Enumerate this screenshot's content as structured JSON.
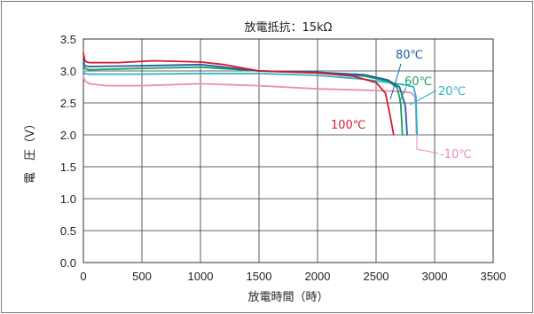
{
  "chart_data": {
    "type": "line",
    "title": "放電抵抗：15kΩ",
    "xlabel": "放電時間（時）",
    "ylabel": "電　圧（V）",
    "xlim": [
      0,
      3500
    ],
    "ylim": [
      0,
      3.5
    ],
    "xticks": [
      "0",
      "500",
      "1000",
      "1500",
      "2000",
      "2500",
      "3000",
      "3500"
    ],
    "yticks": [
      "0.0",
      "0.5",
      "1.0",
      "1.5",
      "2.0",
      "2.5",
      "3.0",
      "3.5"
    ],
    "grid": true,
    "series": [
      {
        "name": "-10℃",
        "color": "#e88cbc",
        "points": [
          [
            0,
            2.93
          ],
          [
            10,
            2.85
          ],
          [
            50,
            2.8
          ],
          [
            200,
            2.77
          ],
          [
            500,
            2.77
          ],
          [
            1000,
            2.8
          ],
          [
            1500,
            2.77
          ],
          [
            2000,
            2.72
          ],
          [
            2400,
            2.7
          ],
          [
            2700,
            2.68
          ],
          [
            2800,
            2.66
          ],
          [
            2830,
            2.6
          ],
          [
            2840,
            2.4
          ],
          [
            2845,
            2.0
          ]
        ]
      },
      {
        "name": "20℃",
        "color": "#2bb3c7",
        "points": [
          [
            0,
            3.0
          ],
          [
            10,
            2.96
          ],
          [
            50,
            2.95
          ],
          [
            500,
            2.95
          ],
          [
            1000,
            2.96
          ],
          [
            1500,
            2.96
          ],
          [
            2000,
            2.93
          ],
          [
            2400,
            2.87
          ],
          [
            2600,
            2.82
          ],
          [
            2750,
            2.78
          ],
          [
            2820,
            2.75
          ],
          [
            2840,
            2.6
          ],
          [
            2850,
            2.0
          ]
        ]
      },
      {
        "name": "60℃",
        "color": "#1e9e5a",
        "points": [
          [
            0,
            3.12
          ],
          [
            10,
            3.04
          ],
          [
            50,
            3.02
          ],
          [
            500,
            3.04
          ],
          [
            1000,
            3.06
          ],
          [
            1500,
            3.0
          ],
          [
            2000,
            2.97
          ],
          [
            2400,
            2.92
          ],
          [
            2600,
            2.84
          ],
          [
            2680,
            2.74
          ],
          [
            2710,
            2.5
          ],
          [
            2725,
            2.0
          ]
        ]
      },
      {
        "name": "80℃",
        "color": "#1f5fa8",
        "points": [
          [
            0,
            3.18
          ],
          [
            10,
            3.08
          ],
          [
            50,
            3.07
          ],
          [
            500,
            3.08
          ],
          [
            1000,
            3.1
          ],
          [
            1500,
            3.0
          ],
          [
            2000,
            2.98
          ],
          [
            2400,
            2.94
          ],
          [
            2600,
            2.86
          ],
          [
            2700,
            2.75
          ],
          [
            2750,
            2.45
          ],
          [
            2765,
            2.0
          ]
        ]
      },
      {
        "name": "100℃",
        "color": "#d7192f",
        "points": [
          [
            0,
            3.28
          ],
          [
            15,
            3.15
          ],
          [
            50,
            3.13
          ],
          [
            300,
            3.13
          ],
          [
            600,
            3.16
          ],
          [
            1000,
            3.14
          ],
          [
            1200,
            3.1
          ],
          [
            1500,
            3.0
          ],
          [
            2000,
            2.97
          ],
          [
            2300,
            2.92
          ],
          [
            2500,
            2.82
          ],
          [
            2580,
            2.65
          ],
          [
            2620,
            2.3
          ],
          [
            2650,
            2.0
          ]
        ]
      }
    ]
  }
}
